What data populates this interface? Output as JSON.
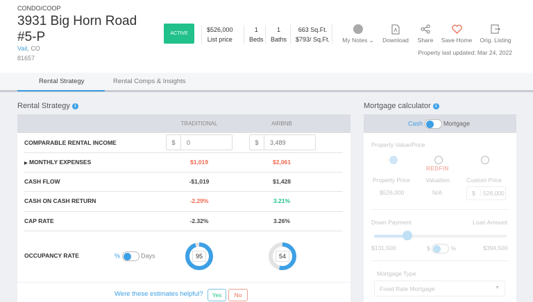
{
  "property": {
    "type": "CONDO/COOP",
    "address": "3931 Big Horn Road #5-P",
    "city": "Vail",
    "state": ", CO",
    "zip": "81657",
    "status": "ACTIVE",
    "stats": [
      {
        "value": "$526,000",
        "label": "List price"
      },
      {
        "value": "1",
        "label": "Beds"
      },
      {
        "value": "1",
        "label": "Baths"
      },
      {
        "value": "663 Sq.Ft.",
        "label": "$793/ Sq.Ft."
      }
    ]
  },
  "actions": [
    {
      "label": "My Notes",
      "icon": "notes-avatar-icon"
    },
    {
      "label": "Download",
      "icon": "pdf-icon"
    },
    {
      "label": "Share",
      "icon": "share-icon"
    },
    {
      "label": "Save Home",
      "icon": "heart-icon"
    },
    {
      "label": "Orig. Listing",
      "icon": "external-icon"
    }
  ],
  "last_updated": "Property last updated: Mar 24, 2022",
  "tabs": [
    "Rental Strategy",
    "Rental Comps & Insights"
  ],
  "rental": {
    "title": "Rental Strategy",
    "columns": [
      "TRADITIONAL",
      "AIRBNB"
    ],
    "rows": [
      {
        "label": "COMPARABLE RENTAL INCOME",
        "trad": "0",
        "airbnb": "3,489",
        "currency": "$"
      },
      {
        "label": "MONTHLY EXPENSES",
        "trad": "$1,019",
        "airbnb": "$2,061"
      },
      {
        "label": "CASH FLOW",
        "trad": "-$1,019",
        "airbnb": "$1,428"
      },
      {
        "label": "CASH ON CASH RETURN",
        "trad": "-2.29%",
        "airbnb": "3.21%"
      },
      {
        "label": "CAP RATE",
        "trad": "-2.32%",
        "airbnb": "3.26%"
      }
    ],
    "occupancy": {
      "label": "OCCUPANCY RATE",
      "toggle_left": "%",
      "toggle_right": "Days",
      "trad": "95",
      "airbnb": "54"
    },
    "feedback": {
      "question": "Were these estimates helpful?",
      "yes": "Yes",
      "no": "No"
    }
  },
  "mortgage": {
    "title": "Mortgage calculator",
    "toggle_left": "Cash",
    "toggle_right": "Mortgage",
    "pv_title": "Property Value/Price",
    "options": [
      {
        "label": "Property Price",
        "value": "$526,000"
      },
      {
        "label": "Valuation",
        "brand": "REDFIN",
        "value": "N/A"
      },
      {
        "label": "Custom Price",
        "currency": "$",
        "value": "526,000"
      }
    ],
    "down_payment": "Down Payment",
    "loan_amount": "Loan Amount",
    "down_value": "$131,500",
    "loan_value": "$394,500",
    "unit_left": "$",
    "unit_right": "%",
    "type_label": "Mortgage Type",
    "type_value": "Fixed Rate Mortgage"
  },
  "colors": {
    "accent": "#3ea0e4",
    "active": "#22c08a",
    "negative": "#f0694f",
    "positive": "#21c08a"
  }
}
